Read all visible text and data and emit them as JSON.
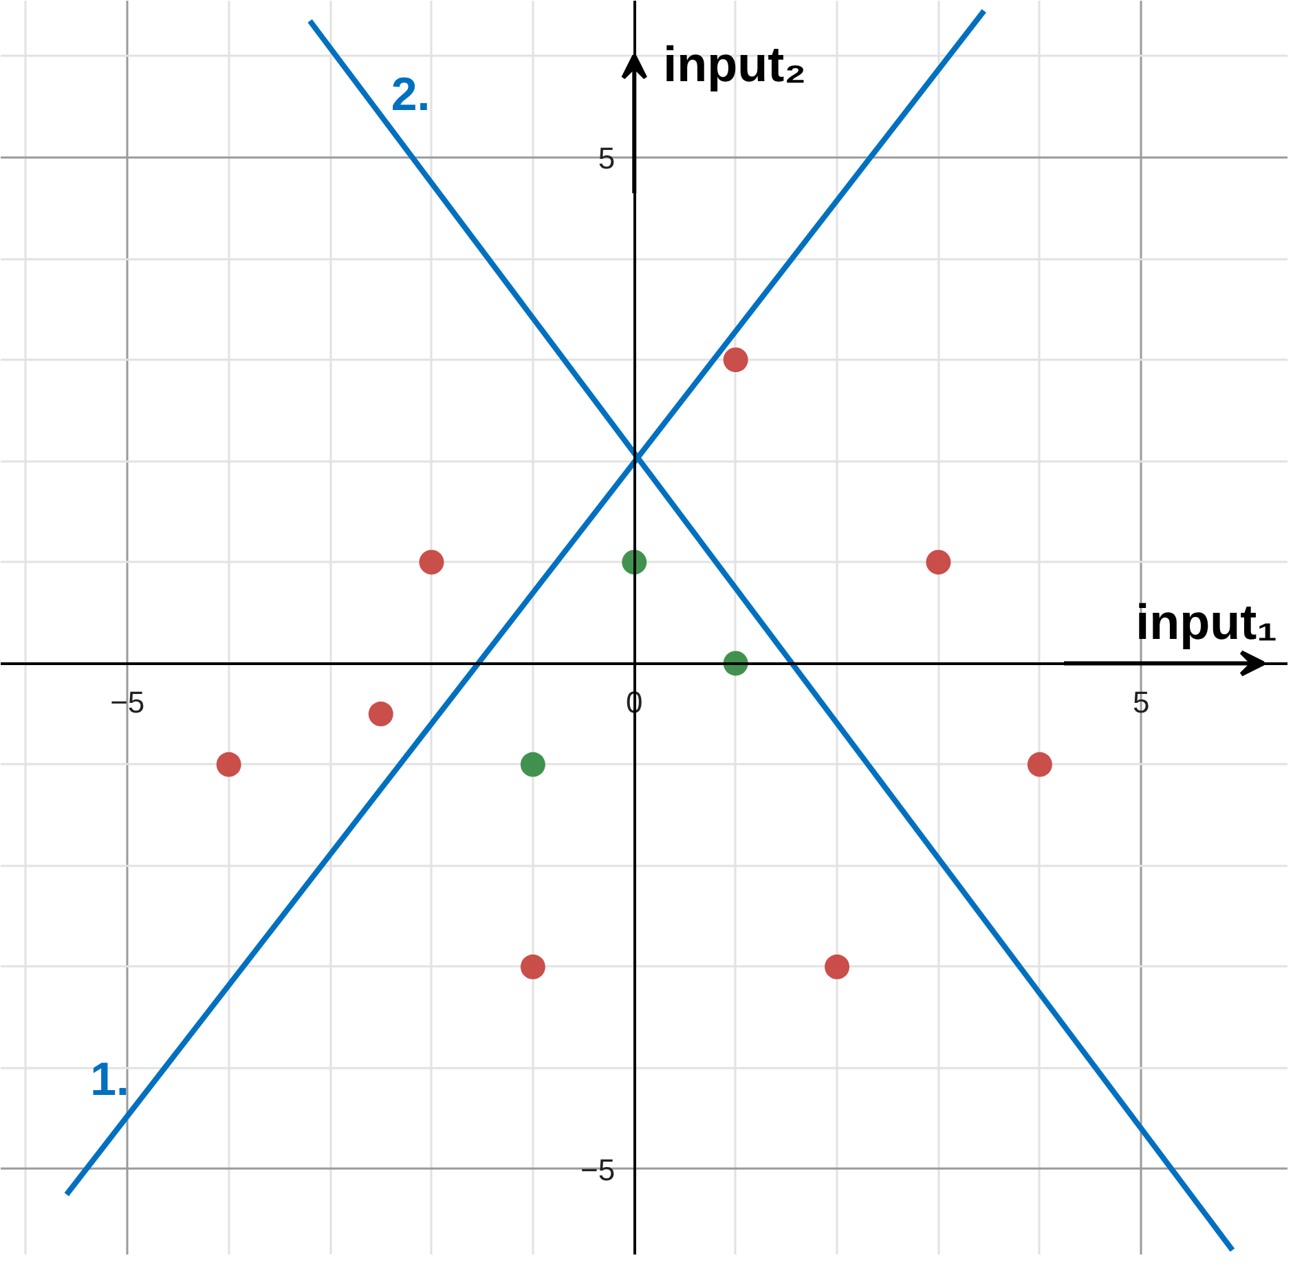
{
  "chart_data": {
    "type": "scatter",
    "xlabel": "input₁",
    "ylabel": "input₂",
    "xlim": [
      -6.25,
      6.45
    ],
    "ylim": [
      -5.85,
      6.55
    ],
    "xticks": [
      {
        "value": -6,
        "label": null
      },
      -5,
      {
        "value": -4,
        "label": null
      },
      {
        "value": -3,
        "label": null
      },
      {
        "value": -2,
        "label": null
      },
      {
        "value": -1,
        "label": null
      },
      0,
      {
        "value": 1,
        "label": null
      },
      {
        "value": 2,
        "label": null
      },
      {
        "value": 3,
        "label": null
      },
      {
        "value": 4,
        "label": null
      },
      5
    ],
    "yticks": [
      -5,
      {
        "value": -4,
        "label": null
      },
      {
        "value": -3,
        "label": null
      },
      {
        "value": -2,
        "label": null
      },
      {
        "value": -1,
        "label": null
      },
      {
        "value": 1,
        "label": null
      },
      {
        "value": 2,
        "label": null
      },
      {
        "value": 3,
        "label": null
      },
      {
        "value": 4,
        "label": null
      },
      5,
      {
        "value": 6,
        "label": null
      }
    ],
    "grid": true,
    "marker": "circle",
    "series": [
      {
        "color": "#c74440",
        "x": [
          1,
          -2,
          3,
          -2.5,
          -4,
          4,
          -1,
          2
        ],
        "values": [
          3,
          1,
          1,
          -0.5,
          -1,
          -1,
          -3,
          -3
        ]
      },
      {
        "color": "#388c46",
        "x": [
          0,
          1,
          -1
        ],
        "values": [
          1,
          0,
          -1
        ]
      },
      {
        "type": "line",
        "name": "1.",
        "color": "#0070c0",
        "marker": "none",
        "x": [
          -5.6,
          3.45
        ],
        "values": [
          -5.25,
          6.45
        ]
      },
      {
        "type": "line",
        "name": "2.",
        "color": "#0070c0",
        "marker": "none",
        "x": [
          -3.2,
          5.9
        ],
        "values": [
          6.35,
          -5.8
        ]
      }
    ]
  }
}
